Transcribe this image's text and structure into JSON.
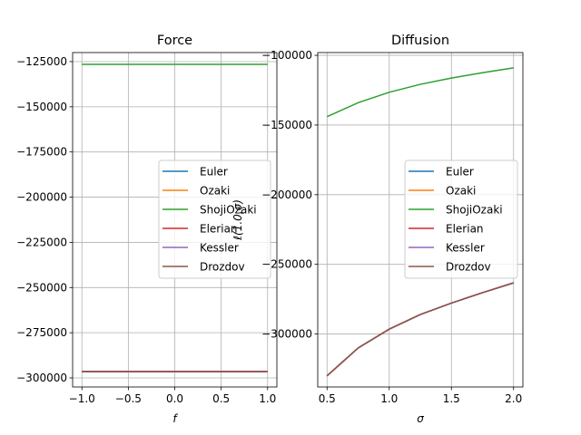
{
  "chart_data": [
    {
      "type": "line",
      "title": "Force",
      "xlabel": "f",
      "ylabel": "",
      "xlim": [
        -1.1,
        1.1
      ],
      "ylim": [
        -305000,
        -120000
      ],
      "xticks": [
        -1.0,
        -0.5,
        0.0,
        0.5,
        1.0
      ],
      "xtick_labels": [
        "−1.0",
        "−0.5",
        "0.0",
        "0.5",
        "1.0"
      ],
      "yticks": [
        -300000,
        -275000,
        -250000,
        -225000,
        -200000,
        -175000,
        -150000,
        -125000
      ],
      "ytick_labels": [
        "−300000",
        "−275000",
        "−250000",
        "−225000",
        "−200000",
        "−175000",
        "−150000",
        "−125000"
      ],
      "grid": true,
      "legend_position": "center-right",
      "x": [
        -1.0,
        -0.5,
        0.0,
        0.5,
        1.0
      ],
      "series": [
        {
          "name": "Euler",
          "color": "#1f77b4",
          "values": [
            -296500,
            -296500,
            -296500,
            -296500,
            -296500
          ]
        },
        {
          "name": "Ozaki",
          "color": "#ff7f0e",
          "values": [
            -296500,
            -296500,
            -296500,
            -296500,
            -296500
          ]
        },
        {
          "name": "ShojiOzaki",
          "color": "#2ca02c",
          "values": [
            -126500,
            -126500,
            -126500,
            -126500,
            -126500
          ]
        },
        {
          "name": "Elerian",
          "color": "#d62728",
          "values": [
            -296500,
            -296500,
            -296500,
            -296500,
            -296500
          ]
        },
        {
          "name": "Kessler",
          "color": "#9467bd",
          "values": [
            -296500,
            -296500,
            -296500,
            -296500,
            -296500
          ]
        },
        {
          "name": "Drozdov",
          "color": "#8c564b",
          "values": [
            -296500,
            -296500,
            -296500,
            -296500,
            -296500
          ]
        }
      ]
    },
    {
      "type": "line",
      "title": "Diffusion",
      "xlabel": "σ",
      "ylabel": "ℓ(1.0,σ)",
      "xlim": [
        0.425,
        2.075
      ],
      "ylim": [
        -338000,
        -98000
      ],
      "xticks": [
        0.5,
        1.0,
        1.5,
        2.0
      ],
      "xtick_labels": [
        "0.5",
        "1.0",
        "1.5",
        "2.0"
      ],
      "yticks": [
        -300000,
        -250000,
        -200000,
        -150000,
        -100000
      ],
      "ytick_labels": [
        "−300000",
        "−250000",
        "−200000",
        "−150000",
        "−100000"
      ],
      "grid": true,
      "legend_position": "center-right",
      "x": [
        0.5,
        0.75,
        1.0,
        1.25,
        1.5,
        1.75,
        2.0
      ],
      "series": [
        {
          "name": "Euler",
          "color": "#1f77b4",
          "values": [
            -330000,
            -310000,
            -296500,
            -286000,
            -277800,
            -270300,
            -263300
          ]
        },
        {
          "name": "Ozaki",
          "color": "#ff7f0e",
          "values": [
            -330000,
            -310000,
            -296500,
            -286000,
            -277800,
            -270300,
            -263300
          ]
        },
        {
          "name": "ShojiOzaki",
          "color": "#2ca02c",
          "values": [
            -144000,
            -134000,
            -126500,
            -120800,
            -116300,
            -112500,
            -109000
          ]
        },
        {
          "name": "Elerian",
          "color": "#d62728",
          "values": [
            -330000,
            -310000,
            -296500,
            -286000,
            -277800,
            -270300,
            -263300
          ]
        },
        {
          "name": "Kessler",
          "color": "#9467bd",
          "values": [
            -330000,
            -310000,
            -296500,
            -286000,
            -277800,
            -270300,
            -263300
          ]
        },
        {
          "name": "Drozdov",
          "color": "#8c564b",
          "values": [
            -330000,
            -310000,
            -296500,
            -286000,
            -277800,
            -270300,
            -263300
          ]
        }
      ]
    }
  ]
}
